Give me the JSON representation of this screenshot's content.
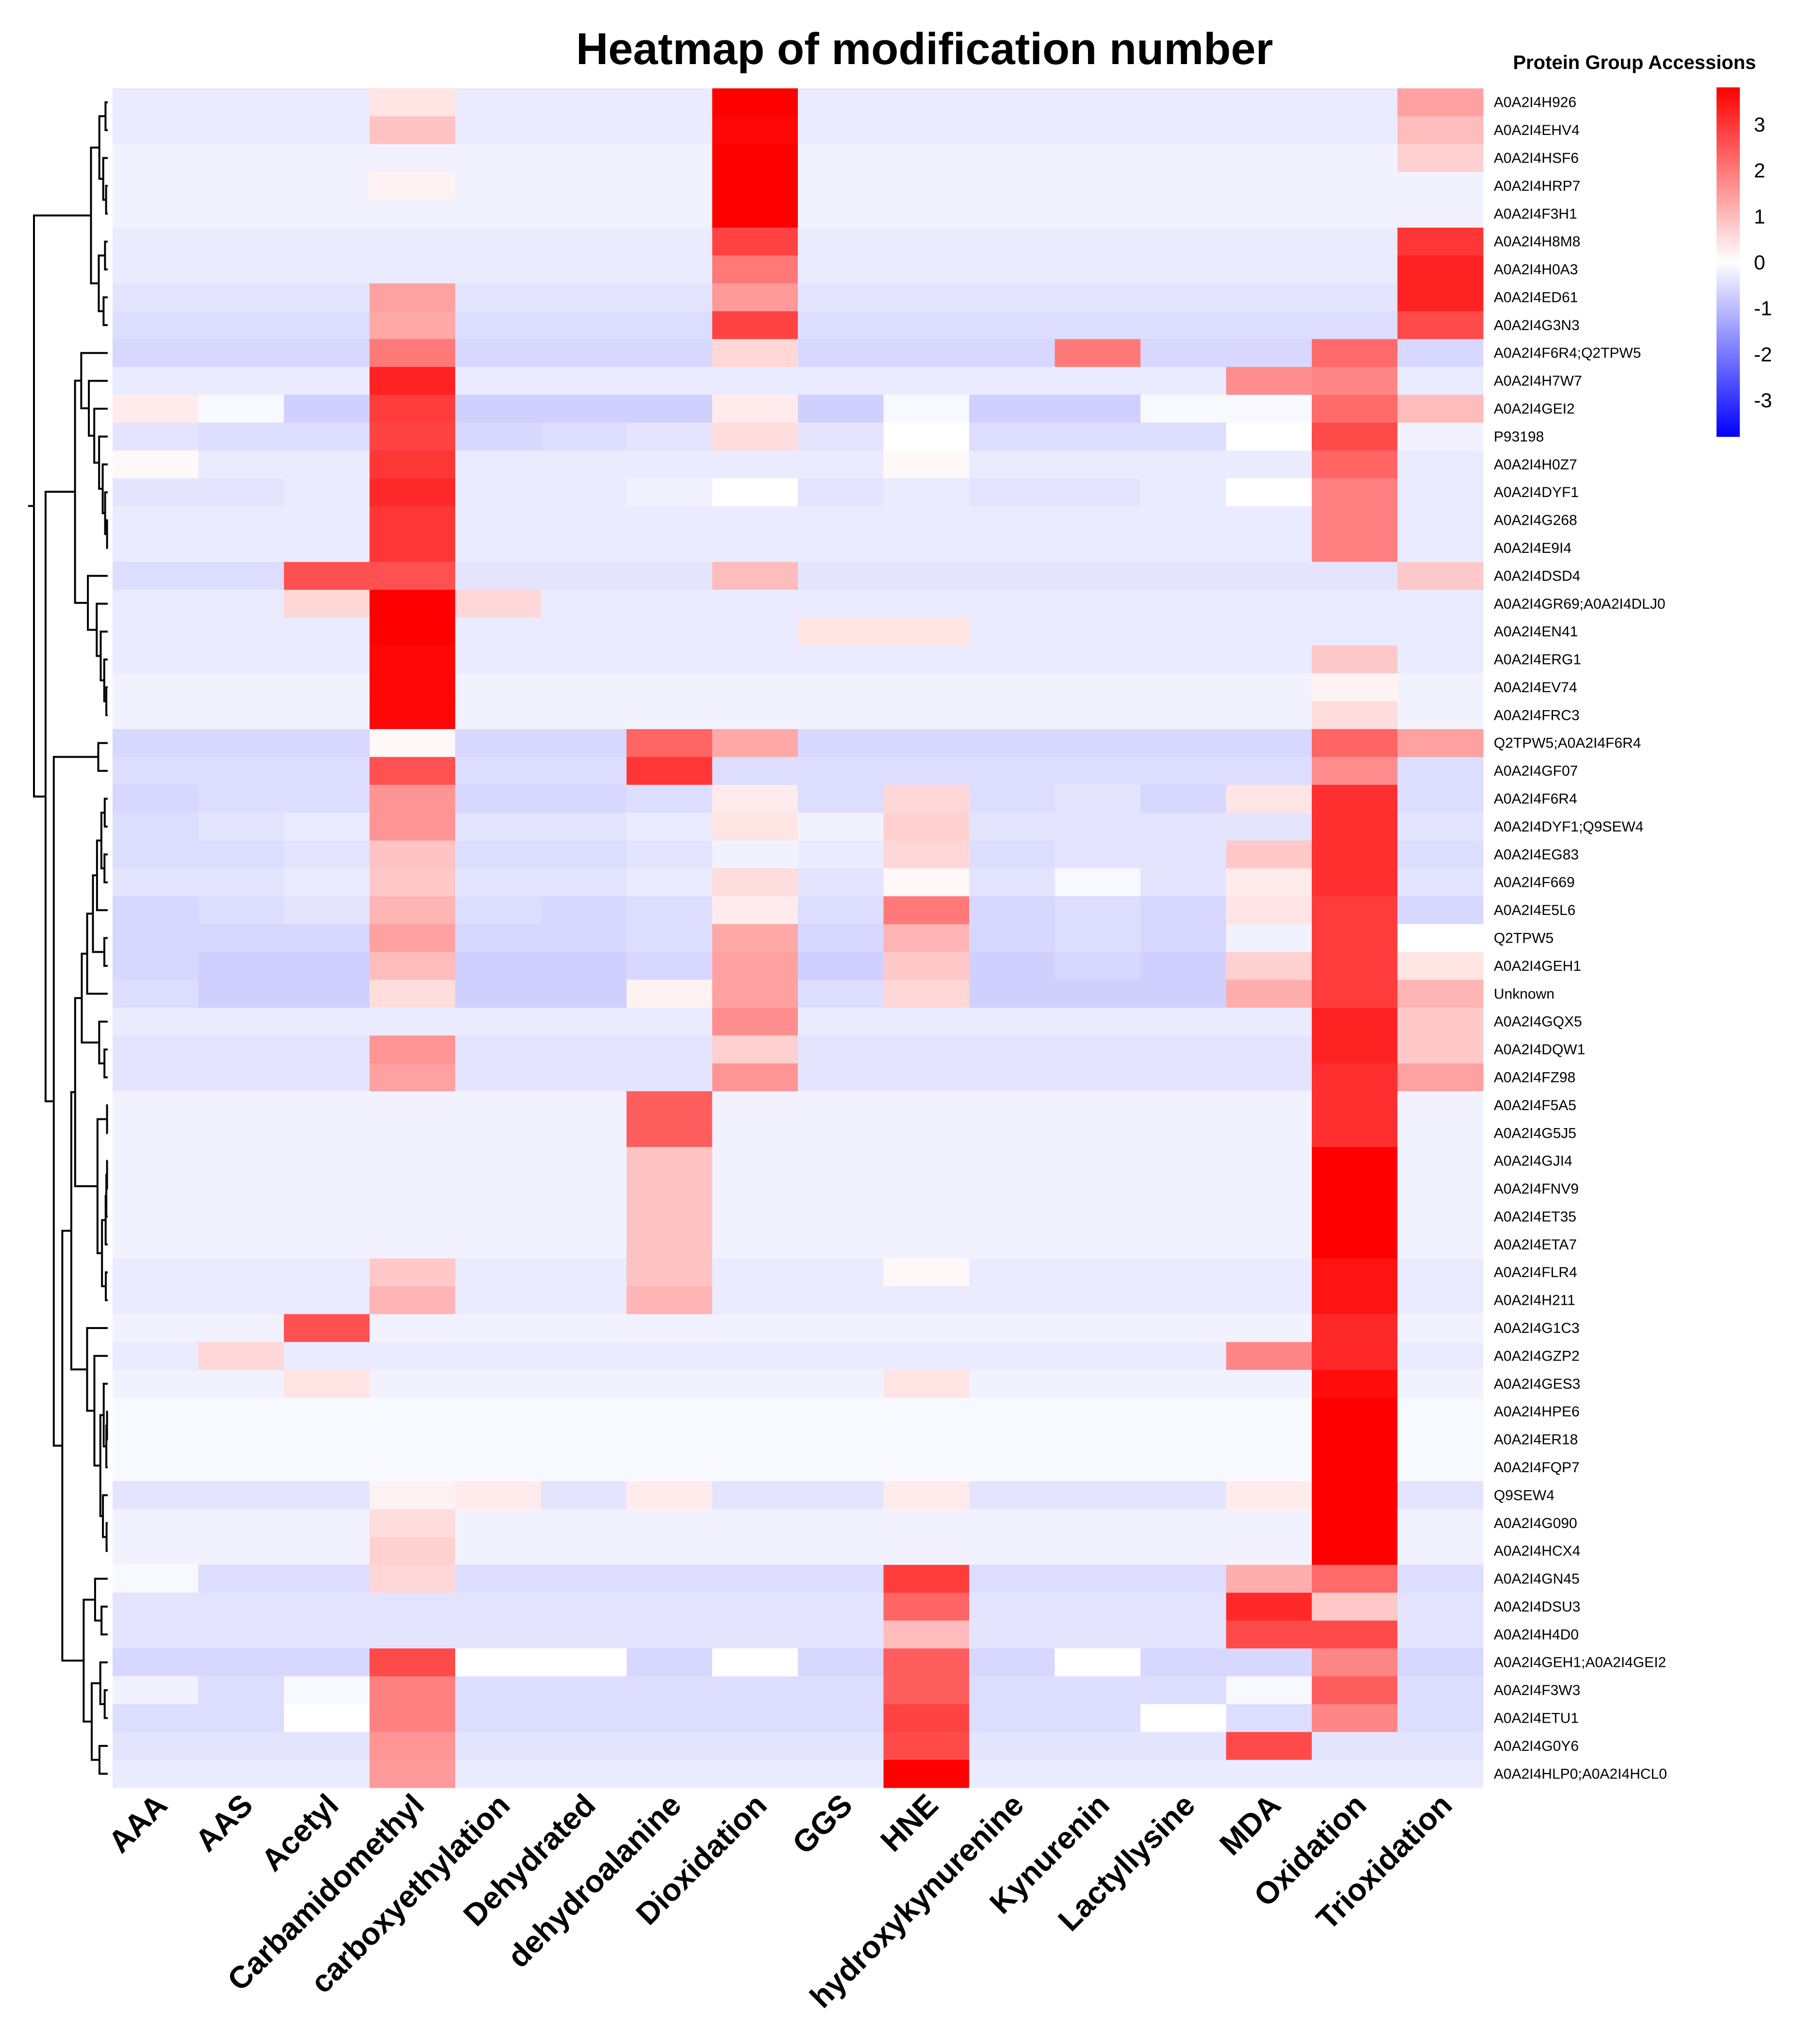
{
  "chart_data": {
    "type": "heatmap",
    "title": "Heatmap of modification number",
    "legend_title": "Protein Group Accessions",
    "columns": [
      "AAA",
      "AAS",
      "Acetyl",
      "Carbamidomethyl",
      "carboxyethylation",
      "Dehydrated",
      "dehydroalanine",
      "Dioxidation",
      "GGS",
      "HNE",
      "hydroxykynurenine",
      "Kynurenin",
      "Lactyllysine",
      "MDA",
      "Oxidation",
      "Trioxidation"
    ],
    "rows": [
      "A0A2I4H926",
      "A0A2I4EHV4",
      "A0A2I4HSF6",
      "A0A2I4HRP7",
      "A0A2I4F3H1",
      "A0A2I4H8M8",
      "A0A2I4H0A3",
      "A0A2I4ED61",
      "A0A2I4G3N3",
      "A0A2I4F6R4;Q2TPW5",
      "A0A2I4H7W7",
      "A0A2I4GEI2",
      "P93198",
      "A0A2I4H0Z7",
      "A0A2I4DYF1",
      "A0A2I4G268",
      "A0A2I4E9I4",
      "A0A2I4DSD4",
      "A0A2I4GR69;A0A2I4DLJ0",
      "A0A2I4EN41",
      "A0A2I4ERG1",
      "A0A2I4EV74",
      "A0A2I4FRC3",
      "Q2TPW5;A0A2I4F6R4",
      "A0A2I4GF07",
      "A0A2I4F6R4",
      "A0A2I4DYF1;Q9SEW4",
      "A0A2I4EG83",
      "A0A2I4F669",
      "A0A2I4E5L6",
      "Q2TPW5",
      "A0A2I4GEH1",
      "Unknown",
      "A0A2I4GQX5",
      "A0A2I4DQW1",
      "A0A2I4FZ98",
      "A0A2I4F5A5",
      "A0A2I4G5J5",
      "A0A2I4GJI4",
      "A0A2I4FNV9",
      "A0A2I4ET35",
      "A0A2I4ETA7",
      "A0A2I4FLR4",
      "A0A2I4H211",
      "A0A2I4G1C3",
      "A0A2I4GZP2",
      "A0A2I4GES3",
      "A0A2I4HPE6",
      "A0A2I4ER18",
      "A0A2I4FQP7",
      "Q9SEW4",
      "A0A2I4G090",
      "A0A2I4HCX4",
      "A0A2I4GN45",
      "A0A2I4DSU3",
      "A0A2I4H4D0",
      "A0A2I4GEH1;A0A2I4GEI2",
      "A0A2I4F3W3",
      "A0A2I4ETU1",
      "A0A2I4G0Y6",
      "A0A2I4HLP0;A0A2I4HCL0"
    ],
    "values": [
      [
        -0.3,
        -0.3,
        -0.3,
        0.4,
        -0.3,
        -0.3,
        -0.3,
        3.8,
        -0.3,
        -0.3,
        -0.3,
        -0.3,
        -0.3,
        -0.3,
        -0.3,
        1.4
      ],
      [
        -0.3,
        -0.3,
        -0.3,
        0.9,
        -0.3,
        -0.3,
        -0.3,
        3.7,
        -0.3,
        -0.3,
        -0.3,
        -0.3,
        -0.3,
        -0.3,
        -0.3,
        1.0
      ],
      [
        -0.2,
        -0.2,
        -0.2,
        -0.2,
        -0.2,
        -0.2,
        -0.2,
        3.8,
        -0.2,
        -0.2,
        -0.2,
        -0.2,
        -0.2,
        -0.2,
        -0.2,
        0.7
      ],
      [
        -0.2,
        -0.2,
        -0.2,
        0.2,
        -0.2,
        -0.2,
        -0.2,
        3.8,
        -0.2,
        -0.2,
        -0.2,
        -0.2,
        -0.2,
        -0.2,
        -0.2,
        -0.2
      ],
      [
        -0.2,
        -0.2,
        -0.2,
        -0.2,
        -0.2,
        -0.2,
        -0.2,
        3.8,
        -0.2,
        -0.2,
        -0.2,
        -0.2,
        -0.2,
        -0.2,
        -0.2,
        -0.2
      ],
      [
        -0.3,
        -0.3,
        -0.3,
        -0.3,
        -0.3,
        -0.3,
        -0.3,
        2.8,
        -0.3,
        -0.3,
        -0.3,
        -0.3,
        -0.3,
        -0.3,
        -0.3,
        3.0
      ],
      [
        -0.3,
        -0.3,
        -0.3,
        -0.3,
        -0.3,
        -0.3,
        -0.3,
        2.0,
        -0.3,
        -0.3,
        -0.3,
        -0.3,
        -0.3,
        -0.3,
        -0.3,
        3.3
      ],
      [
        -0.4,
        -0.4,
        -0.4,
        1.4,
        -0.4,
        -0.4,
        -0.4,
        1.5,
        -0.4,
        -0.4,
        -0.4,
        -0.4,
        -0.4,
        -0.4,
        -0.4,
        3.3
      ],
      [
        -0.5,
        -0.5,
        -0.5,
        1.3,
        -0.5,
        -0.5,
        -0.5,
        2.8,
        -0.5,
        -0.5,
        -0.5,
        -0.5,
        -0.5,
        -0.5,
        -0.5,
        2.7
      ],
      [
        -0.6,
        -0.6,
        -0.6,
        2.0,
        -0.6,
        -0.6,
        -0.6,
        0.6,
        -0.6,
        -0.6,
        -0.6,
        2.0,
        -0.6,
        -0.6,
        2.2,
        -0.6
      ],
      [
        -0.3,
        -0.3,
        -0.3,
        3.3,
        -0.3,
        -0.3,
        -0.3,
        -0.3,
        -0.3,
        -0.3,
        -0.3,
        -0.3,
        -0.3,
        1.7,
        1.8,
        -0.3
      ],
      [
        0.3,
        -0.1,
        -0.7,
        2.9,
        -0.7,
        -0.7,
        -0.7,
        0.3,
        -0.7,
        -0.1,
        -0.7,
        -0.7,
        -0.1,
        -0.1,
        2.2,
        1.0
      ],
      [
        -0.4,
        -0.5,
        -0.5,
        2.8,
        -0.6,
        -0.5,
        -0.4,
        0.5,
        -0.4,
        0.0,
        -0.5,
        -0.5,
        -0.5,
        0.0,
        2.7,
        -0.2
      ],
      [
        0.1,
        -0.3,
        -0.3,
        3.0,
        -0.3,
        -0.3,
        -0.3,
        -0.3,
        -0.3,
        0.1,
        -0.3,
        -0.3,
        -0.3,
        -0.3,
        2.3,
        -0.3
      ],
      [
        -0.4,
        -0.4,
        -0.3,
        3.2,
        -0.3,
        -0.3,
        -0.2,
        0.0,
        -0.4,
        -0.3,
        -0.4,
        -0.4,
        -0.3,
        0.0,
        1.9,
        -0.3
      ],
      [
        -0.3,
        -0.3,
        -0.3,
        3.0,
        -0.3,
        -0.3,
        -0.3,
        -0.3,
        -0.3,
        -0.3,
        -0.3,
        -0.3,
        -0.3,
        -0.3,
        1.9,
        -0.3
      ],
      [
        -0.3,
        -0.3,
        -0.3,
        3.0,
        -0.3,
        -0.3,
        -0.3,
        -0.3,
        -0.3,
        -0.3,
        -0.3,
        -0.3,
        -0.3,
        -0.3,
        1.9,
        -0.3
      ],
      [
        -0.5,
        -0.5,
        2.6,
        2.6,
        -0.4,
        -0.4,
        -0.4,
        1.0,
        -0.4,
        -0.4,
        -0.4,
        -0.4,
        -0.4,
        -0.4,
        -0.4,
        0.8
      ],
      [
        -0.3,
        -0.3,
        0.6,
        3.8,
        0.6,
        -0.3,
        -0.3,
        -0.3,
        -0.3,
        -0.3,
        -0.3,
        -0.3,
        -0.3,
        -0.3,
        -0.3,
        -0.3
      ],
      [
        -0.3,
        -0.3,
        -0.3,
        3.8,
        -0.3,
        -0.3,
        -0.3,
        -0.3,
        0.4,
        0.4,
        -0.3,
        -0.3,
        -0.3,
        -0.3,
        -0.3,
        -0.3
      ],
      [
        -0.3,
        -0.3,
        -0.3,
        3.7,
        -0.3,
        -0.3,
        -0.3,
        -0.3,
        -0.3,
        -0.3,
        -0.3,
        -0.3,
        -0.3,
        -0.3,
        0.8,
        -0.3
      ],
      [
        -0.2,
        -0.2,
        -0.2,
        3.7,
        -0.2,
        -0.2,
        -0.2,
        -0.2,
        -0.2,
        -0.2,
        -0.2,
        -0.2,
        -0.2,
        -0.2,
        0.2,
        -0.2
      ],
      [
        -0.2,
        -0.2,
        -0.2,
        3.7,
        -0.2,
        -0.2,
        -0.2,
        -0.2,
        -0.2,
        -0.2,
        -0.2,
        -0.2,
        -0.2,
        -0.2,
        0.5,
        -0.2
      ],
      [
        -0.6,
        -0.6,
        -0.6,
        0.1,
        -0.6,
        -0.6,
        2.3,
        1.3,
        -0.6,
        -0.6,
        -0.6,
        -0.6,
        -0.6,
        -0.6,
        2.3,
        1.4
      ],
      [
        -0.5,
        -0.5,
        -0.5,
        2.6,
        -0.5,
        -0.5,
        3.0,
        -0.5,
        -0.5,
        -0.5,
        -0.5,
        -0.5,
        -0.5,
        -0.5,
        1.7,
        -0.5
      ],
      [
        -0.6,
        -0.5,
        -0.5,
        1.6,
        -0.6,
        -0.6,
        -0.5,
        0.3,
        -0.5,
        0.6,
        -0.5,
        -0.4,
        -0.6,
        0.4,
        3.1,
        -0.5
      ],
      [
        -0.5,
        -0.4,
        -0.3,
        1.6,
        -0.4,
        -0.4,
        -0.3,
        0.4,
        -0.2,
        0.7,
        -0.4,
        -0.4,
        -0.4,
        -0.4,
        3.1,
        -0.4
      ],
      [
        -0.5,
        -0.5,
        -0.4,
        0.9,
        -0.5,
        -0.5,
        -0.4,
        -0.2,
        -0.3,
        0.6,
        -0.5,
        -0.4,
        -0.4,
        0.8,
        3.1,
        -0.5
      ],
      [
        -0.4,
        -0.4,
        -0.3,
        0.8,
        -0.4,
        -0.4,
        -0.3,
        0.5,
        -0.4,
        0.1,
        -0.4,
        -0.1,
        -0.4,
        0.3,
        3.1,
        -0.4
      ],
      [
        -0.6,
        -0.5,
        -0.4,
        1.1,
        -0.5,
        -0.6,
        -0.5,
        0.3,
        -0.5,
        2.0,
        -0.6,
        -0.5,
        -0.6,
        0.4,
        2.9,
        -0.6
      ],
      [
        -0.6,
        -0.6,
        -0.6,
        1.4,
        -0.6,
        -0.6,
        -0.5,
        1.3,
        -0.6,
        1.1,
        -0.6,
        -0.5,
        -0.6,
        -0.2,
        2.9,
        0.0
      ],
      [
        -0.6,
        -0.7,
        -0.7,
        1.0,
        -0.7,
        -0.7,
        -0.6,
        1.4,
        -0.7,
        0.8,
        -0.7,
        -0.6,
        -0.7,
        0.7,
        2.9,
        0.4
      ],
      [
        -0.5,
        -0.7,
        -0.7,
        0.5,
        -0.7,
        -0.7,
        0.2,
        1.4,
        -0.5,
        0.6,
        -0.7,
        -0.7,
        -0.7,
        1.2,
        2.9,
        1.1
      ],
      [
        -0.3,
        -0.3,
        -0.3,
        -0.3,
        -0.3,
        -0.3,
        -0.3,
        1.7,
        -0.3,
        -0.3,
        -0.3,
        -0.3,
        -0.3,
        -0.3,
        3.3,
        0.8
      ],
      [
        -0.4,
        -0.4,
        -0.4,
        1.6,
        -0.4,
        -0.4,
        -0.4,
        0.7,
        -0.4,
        -0.4,
        -0.4,
        -0.4,
        -0.4,
        -0.4,
        3.3,
        0.8
      ],
      [
        -0.4,
        -0.4,
        -0.4,
        1.4,
        -0.4,
        -0.4,
        -0.4,
        1.6,
        -0.4,
        -0.4,
        -0.4,
        -0.4,
        -0.4,
        -0.4,
        3.1,
        1.4
      ],
      [
        -0.2,
        -0.2,
        -0.2,
        -0.2,
        -0.2,
        -0.2,
        2.4,
        -0.2,
        -0.2,
        -0.2,
        -0.2,
        -0.2,
        -0.2,
        -0.2,
        3.1,
        -0.2
      ],
      [
        -0.2,
        -0.2,
        -0.2,
        -0.2,
        -0.2,
        -0.2,
        2.4,
        -0.2,
        -0.2,
        -0.2,
        -0.2,
        -0.2,
        -0.2,
        -0.2,
        3.1,
        -0.2
      ],
      [
        -0.2,
        -0.2,
        -0.2,
        -0.2,
        -0.2,
        -0.2,
        0.9,
        -0.2,
        -0.2,
        -0.2,
        -0.2,
        -0.2,
        -0.2,
        -0.2,
        3.8,
        -0.2
      ],
      [
        -0.2,
        -0.2,
        -0.2,
        -0.2,
        -0.2,
        -0.2,
        0.9,
        -0.2,
        -0.2,
        -0.2,
        -0.2,
        -0.2,
        -0.2,
        -0.2,
        3.8,
        -0.2
      ],
      [
        -0.2,
        -0.2,
        -0.2,
        -0.2,
        -0.2,
        -0.2,
        0.9,
        -0.2,
        -0.2,
        -0.2,
        -0.2,
        -0.2,
        -0.2,
        -0.2,
        3.8,
        -0.2
      ],
      [
        -0.2,
        -0.2,
        -0.2,
        -0.2,
        -0.2,
        -0.2,
        0.9,
        -0.2,
        -0.2,
        -0.2,
        -0.2,
        -0.2,
        -0.2,
        -0.2,
        3.8,
        -0.2
      ],
      [
        -0.3,
        -0.3,
        -0.3,
        0.8,
        -0.3,
        -0.3,
        0.9,
        -0.3,
        -0.3,
        0.1,
        -0.3,
        -0.3,
        -0.3,
        -0.3,
        3.5,
        -0.3
      ],
      [
        -0.3,
        -0.3,
        -0.3,
        1.1,
        -0.3,
        -0.3,
        1.1,
        -0.3,
        -0.3,
        -0.3,
        -0.3,
        -0.3,
        -0.3,
        -0.3,
        3.5,
        -0.3
      ],
      [
        -0.2,
        -0.2,
        2.6,
        -0.2,
        -0.2,
        -0.2,
        -0.2,
        -0.2,
        -0.2,
        -0.2,
        -0.2,
        -0.2,
        -0.2,
        -0.2,
        3.2,
        -0.2
      ],
      [
        -0.3,
        0.6,
        -0.3,
        -0.3,
        -0.3,
        -0.3,
        -0.3,
        -0.3,
        -0.3,
        -0.3,
        -0.3,
        -0.3,
        -0.3,
        1.8,
        3.2,
        -0.3
      ],
      [
        -0.2,
        -0.2,
        0.4,
        -0.2,
        -0.2,
        -0.2,
        -0.2,
        -0.2,
        -0.2,
        0.4,
        -0.2,
        -0.2,
        -0.2,
        -0.2,
        3.6,
        -0.2
      ],
      [
        -0.1,
        -0.1,
        -0.1,
        -0.1,
        -0.1,
        -0.1,
        -0.1,
        -0.1,
        -0.1,
        -0.1,
        -0.1,
        -0.1,
        -0.1,
        -0.1,
        3.8,
        -0.1
      ],
      [
        -0.1,
        -0.1,
        -0.1,
        -0.1,
        -0.1,
        -0.1,
        -0.1,
        -0.1,
        -0.1,
        -0.1,
        -0.1,
        -0.1,
        -0.1,
        -0.1,
        3.8,
        -0.1
      ],
      [
        -0.1,
        -0.1,
        -0.1,
        -0.1,
        -0.1,
        -0.1,
        -0.1,
        -0.1,
        -0.1,
        -0.1,
        -0.1,
        -0.1,
        -0.1,
        -0.1,
        3.8,
        -0.1
      ],
      [
        -0.4,
        -0.4,
        -0.4,
        0.2,
        0.3,
        -0.4,
        0.3,
        -0.4,
        -0.4,
        0.3,
        -0.4,
        -0.4,
        -0.4,
        0.3,
        3.8,
        -0.4
      ],
      [
        -0.2,
        -0.2,
        -0.2,
        0.5,
        -0.2,
        -0.2,
        -0.2,
        -0.2,
        -0.2,
        -0.2,
        -0.2,
        -0.2,
        -0.2,
        -0.2,
        3.8,
        -0.2
      ],
      [
        -0.2,
        -0.2,
        -0.2,
        0.7,
        -0.2,
        -0.2,
        -0.2,
        -0.2,
        -0.2,
        -0.2,
        -0.2,
        -0.2,
        -0.2,
        -0.2,
        3.8,
        -0.2
      ],
      [
        -0.1,
        -0.5,
        -0.5,
        0.6,
        -0.5,
        -0.5,
        -0.5,
        -0.5,
        -0.5,
        2.9,
        -0.5,
        -0.5,
        -0.5,
        1.2,
        2.2,
        -0.5
      ],
      [
        -0.4,
        -0.4,
        -0.4,
        -0.4,
        -0.4,
        -0.4,
        -0.4,
        -0.4,
        -0.4,
        2.3,
        -0.4,
        -0.4,
        -0.4,
        3.2,
        0.8,
        -0.4
      ],
      [
        -0.4,
        -0.4,
        -0.4,
        -0.4,
        -0.4,
        -0.4,
        -0.4,
        -0.4,
        -0.4,
        1.0,
        -0.4,
        -0.4,
        -0.4,
        2.7,
        2.7,
        -0.4
      ],
      [
        -0.6,
        -0.6,
        -0.6,
        2.7,
        0.0,
        0.0,
        -0.6,
        0.0,
        -0.6,
        2.4,
        -0.6,
        0.0,
        -0.6,
        -0.6,
        1.8,
        -0.6
      ],
      [
        -0.2,
        -0.5,
        -0.1,
        1.9,
        -0.5,
        -0.5,
        -0.5,
        -0.5,
        -0.5,
        2.4,
        -0.5,
        -0.5,
        -0.5,
        -0.1,
        2.4,
        -0.5
      ],
      [
        -0.5,
        -0.5,
        0.0,
        1.9,
        -0.5,
        -0.5,
        -0.5,
        -0.5,
        -0.5,
        2.8,
        -0.5,
        -0.5,
        0.0,
        -0.5,
        1.8,
        -0.5
      ],
      [
        -0.4,
        -0.4,
        -0.4,
        1.6,
        -0.4,
        -0.4,
        -0.4,
        -0.4,
        -0.4,
        2.7,
        -0.4,
        -0.4,
        -0.4,
        2.7,
        -0.4,
        -0.4
      ],
      [
        -0.3,
        -0.3,
        -0.3,
        1.5,
        -0.3,
        -0.3,
        -0.3,
        -0.3,
        -0.3,
        3.8,
        -0.3,
        -0.3,
        -0.3,
        -0.3,
        -0.3,
        -0.3
      ]
    ],
    "color_scale": {
      "min": -3.8,
      "max": 3.8,
      "low": "#0000ff",
      "mid": "#ffffff",
      "high": "#ff0000"
    },
    "legend_ticks": [
      "3",
      "2",
      "1",
      "0",
      "-1",
      "-2",
      "-3"
    ],
    "legend_tick_values": [
      3,
      2,
      1,
      0,
      -1,
      -2,
      -3
    ]
  }
}
